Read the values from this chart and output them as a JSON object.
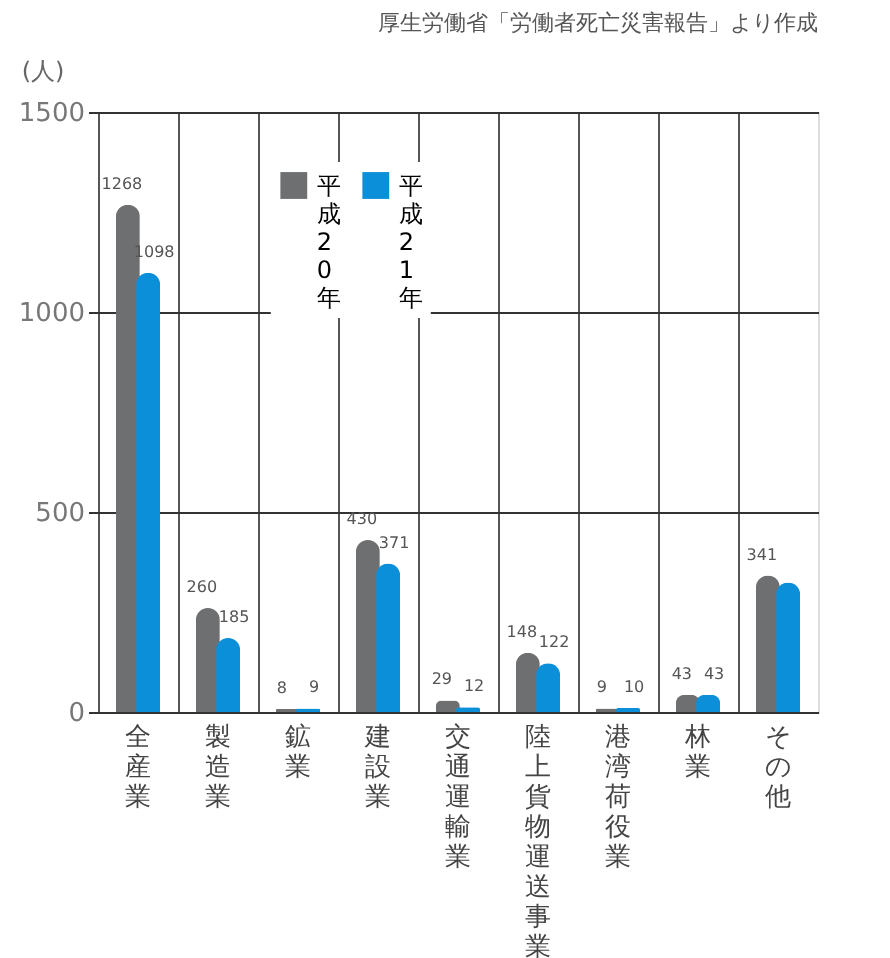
{
  "chart_data": {
    "type": "bar",
    "ylabel": "(人)",
    "annotations": [
      "厚生労働省「労働者死亡災害報告」より作成"
    ],
    "categories": [
      "全産業",
      "製造業",
      "鉱業",
      "建設業",
      "交通運輸業",
      "陸上貨物運送事業",
      "港湾荷役業",
      "林業",
      "その他"
    ],
    "series": [
      {
        "name": "平成20年",
        "color": "#6e6f71",
        "values": [
          1268,
          260,
          8,
          430,
          29,
          148,
          9,
          43,
          341
        ],
        "value_labels": [
          "1268",
          "260",
          "8",
          "430",
          "29",
          "148",
          "9",
          "43",
          "341"
        ]
      },
      {
        "name": "平成21年",
        "color": "#0a8fd8",
        "values": [
          1098,
          185,
          9,
          371,
          12,
          122,
          10,
          43,
          324
        ],
        "value_labels": [
          "1098",
          "185",
          "9",
          "371",
          "12",
          "122",
          "10",
          "43",
          null
        ]
      }
    ],
    "ylim": [
      0,
      1500
    ],
    "yticks": [
      0,
      500,
      1000,
      1500
    ],
    "grid": true,
    "legend": "top left"
  }
}
